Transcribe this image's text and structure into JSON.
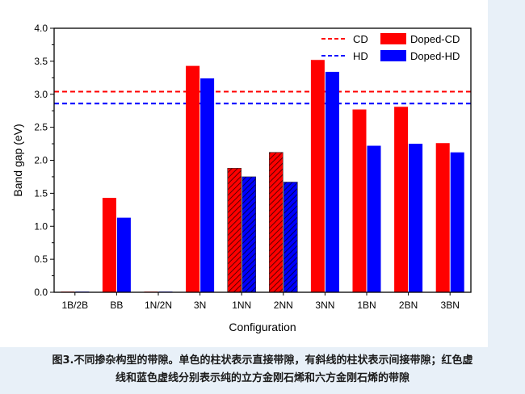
{
  "chart_data": {
    "type": "bar",
    "title": "",
    "xlabel": "Configuration",
    "ylabel": "Band gap (eV)",
    "ylim": [
      0.0,
      4.0
    ],
    "yticks": [
      "0.0",
      "0.5",
      "1.0",
      "1.5",
      "2.0",
      "2.5",
      "3.0",
      "3.5",
      "4.0"
    ],
    "categories": [
      "1B/2B",
      "BB",
      "1N/2N",
      "3N",
      "1NN",
      "2NN",
      "3NN",
      "1BN",
      "2BN",
      "3BN"
    ],
    "series": [
      {
        "name": "Doped-CD",
        "color": "#ff0000",
        "values": [
          0.01,
          1.43,
          0.01,
          3.43,
          1.88,
          2.12,
          3.52,
          2.77,
          2.81,
          2.26
        ],
        "hatched": [
          false,
          false,
          false,
          false,
          true,
          true,
          false,
          false,
          false,
          false
        ]
      },
      {
        "name": "Doped-HD",
        "color": "#0000ff",
        "values": [
          0.01,
          1.13,
          0.01,
          3.24,
          1.75,
          1.67,
          3.34,
          2.22,
          2.25,
          2.12
        ],
        "hatched": [
          false,
          false,
          false,
          false,
          true,
          true,
          false,
          false,
          false,
          false
        ]
      }
    ],
    "reference_lines": [
      {
        "name": "CD",
        "value": 3.04,
        "color": "#ff0000",
        "style": "dashed"
      },
      {
        "name": "HD",
        "value": 2.86,
        "color": "#0000ff",
        "style": "dashed"
      }
    ],
    "legend_position": "top-right"
  },
  "caption": {
    "line1": "图3.不同掺杂构型的带隙。单色的柱状表示直接带隙，有斜线的柱状表示间接带隙；红色虚",
    "line2": "线和蓝色虚线分别表示纯的立方金刚石烯和六方金刚石烯的带隙"
  }
}
